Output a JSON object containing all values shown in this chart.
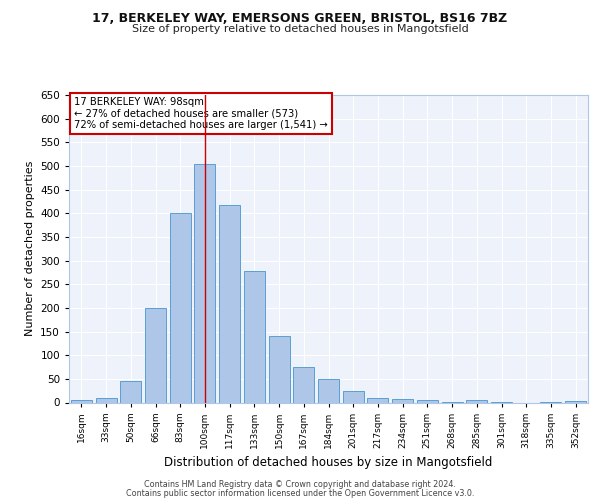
{
  "title1": "17, BERKELEY WAY, EMERSONS GREEN, BRISTOL, BS16 7BZ",
  "title2": "Size of property relative to detached houses in Mangotsfield",
  "xlabel": "Distribution of detached houses by size in Mangotsfield",
  "ylabel": "Number of detached properties",
  "categories": [
    "16sqm",
    "33sqm",
    "50sqm",
    "66sqm",
    "83sqm",
    "100sqm",
    "117sqm",
    "133sqm",
    "150sqm",
    "167sqm",
    "184sqm",
    "201sqm",
    "217sqm",
    "234sqm",
    "251sqm",
    "268sqm",
    "285sqm",
    "301sqm",
    "318sqm",
    "335sqm",
    "352sqm"
  ],
  "values": [
    5,
    10,
    45,
    200,
    400,
    505,
    418,
    278,
    140,
    75,
    50,
    25,
    10,
    8,
    5,
    1,
    5,
    1,
    0,
    2,
    3
  ],
  "bar_color": "#aec6e8",
  "bar_edge_color": "#5a9fd4",
  "highlight_index": 5,
  "highlight_line_color": "#cc0000",
  "annotation_text": "17 BERKELEY WAY: 98sqm\n← 27% of detached houses are smaller (573)\n72% of semi-detached houses are larger (1,541) →",
  "annotation_box_color": "#ffffff",
  "annotation_box_edge": "#cc0000",
  "ylim": [
    0,
    650
  ],
  "yticks": [
    0,
    50,
    100,
    150,
    200,
    250,
    300,
    350,
    400,
    450,
    500,
    550,
    600,
    650
  ],
  "bg_color": "#eef2fa",
  "grid_color": "#ffffff",
  "footer1": "Contains HM Land Registry data © Crown copyright and database right 2024.",
  "footer2": "Contains public sector information licensed under the Open Government Licence v3.0."
}
